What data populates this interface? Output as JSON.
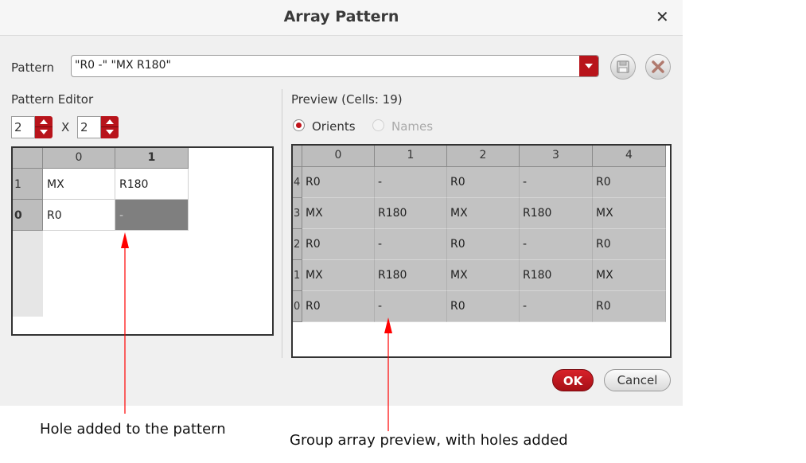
{
  "dialog": {
    "title": "Array Pattern",
    "close_icon": "close-icon"
  },
  "pattern": {
    "label": "Pattern",
    "value": "\"R0 -\" \"MX R180\"",
    "save_icon": "floppy-disk-icon",
    "delete_icon": "delete-x-icon"
  },
  "editor": {
    "label": "Pattern Editor",
    "rows_value": "2",
    "x_label": "X",
    "cols_value": "2",
    "col_headers": [
      "0",
      "1"
    ],
    "rows": [
      {
        "header": "1",
        "cells": [
          "MX",
          "R180"
        ]
      },
      {
        "header": "0",
        "cells": [
          "R0",
          "-"
        ]
      }
    ]
  },
  "preview": {
    "label": "Preview (Cells: 19)",
    "radio_orients": "Orients",
    "radio_names": "Names",
    "col_headers": [
      "0",
      "1",
      "2",
      "3",
      "4"
    ],
    "rows": [
      {
        "header": "4",
        "cells": [
          "R0",
          "-",
          "R0",
          "-",
          "R0"
        ]
      },
      {
        "header": "3",
        "cells": [
          "MX",
          "R180",
          "MX",
          "R180",
          "MX"
        ]
      },
      {
        "header": "2",
        "cells": [
          "R0",
          "-",
          "R0",
          "-",
          "R0"
        ]
      },
      {
        "header": "1",
        "cells": [
          "MX",
          "R180",
          "MX",
          "R180",
          "MX"
        ]
      },
      {
        "header": "0",
        "cells": [
          "R0",
          "-",
          "R0",
          "-",
          "R0"
        ]
      }
    ]
  },
  "buttons": {
    "ok": "OK",
    "cancel": "Cancel"
  },
  "annotations": {
    "left": "Hole added to the pattern",
    "right": "Group array preview, with holes added",
    "arrow_color": "#ff0000"
  },
  "colors": {
    "accent": "#b8141b"
  }
}
